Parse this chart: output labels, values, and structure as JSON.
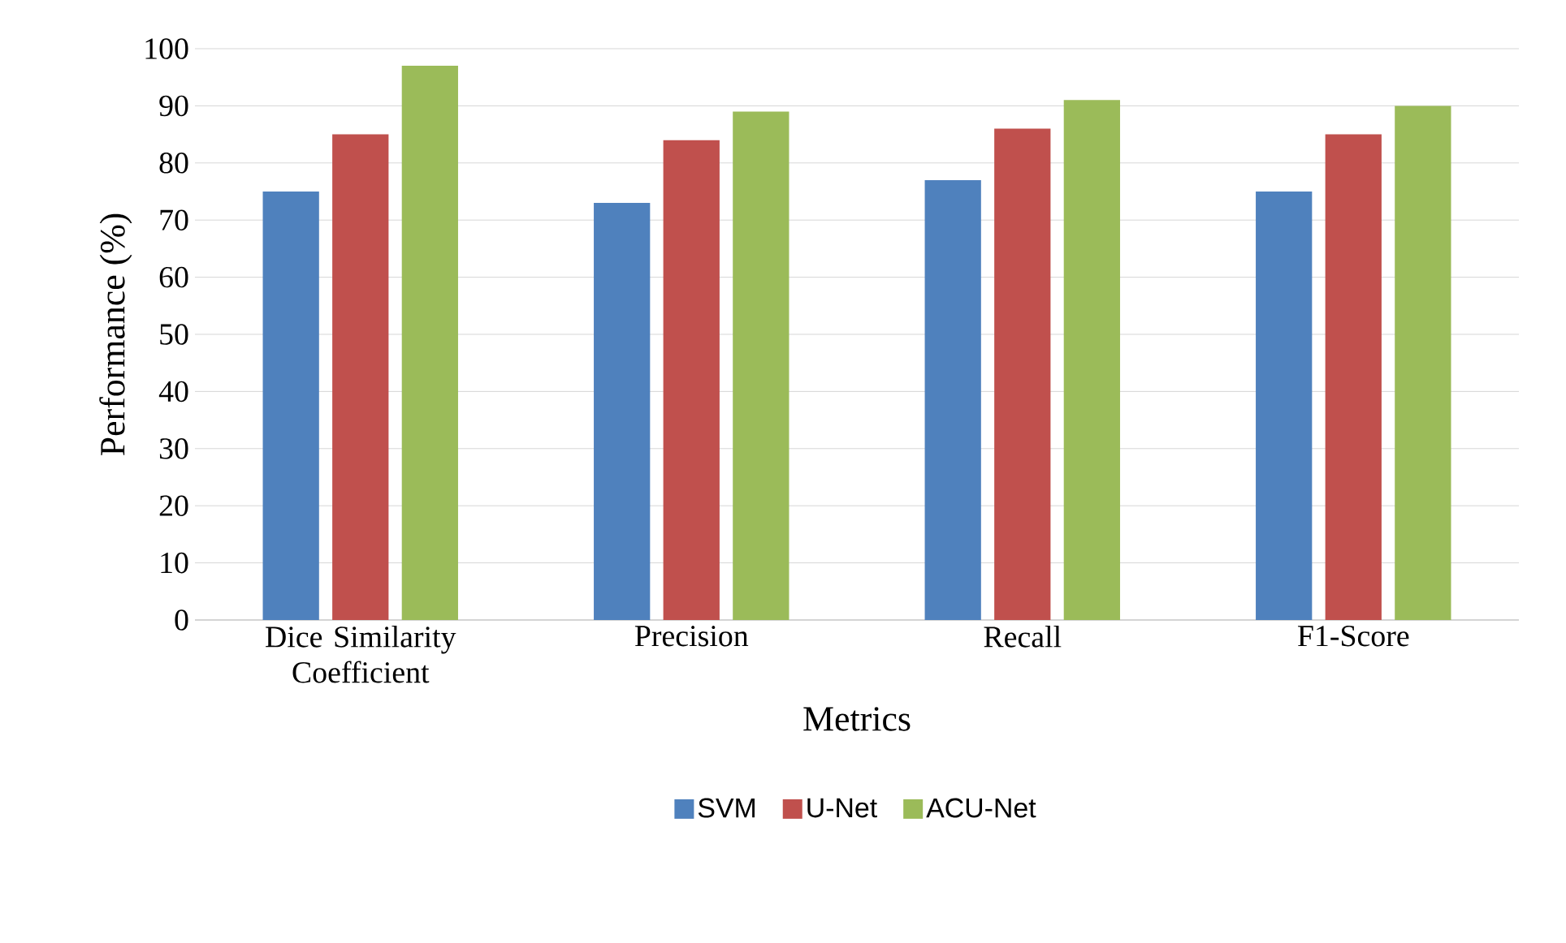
{
  "chart_data": {
    "type": "bar",
    "xlabel": "Metrics",
    "ylabel": "Performance (%)",
    "categories": [
      "Dice Similarity Coefficient",
      "Precision",
      "Recall",
      "F1-Score"
    ],
    "series": [
      {
        "name": "SVM",
        "color": "#4f81bd",
        "values": [
          75,
          73,
          77,
          75
        ]
      },
      {
        "name": "U-Net",
        "color": "#c0504d",
        "values": [
          85,
          84,
          86,
          85
        ]
      },
      {
        "name": "ACU-Net",
        "color": "#9bbb59",
        "values": [
          97,
          89,
          91,
          90
        ]
      }
    ],
    "ylim": [
      0,
      100
    ],
    "yticks": [
      0,
      10,
      20,
      30,
      40,
      50,
      60,
      70,
      80,
      90,
      100
    ],
    "grid": "y",
    "legend": "bottom"
  }
}
